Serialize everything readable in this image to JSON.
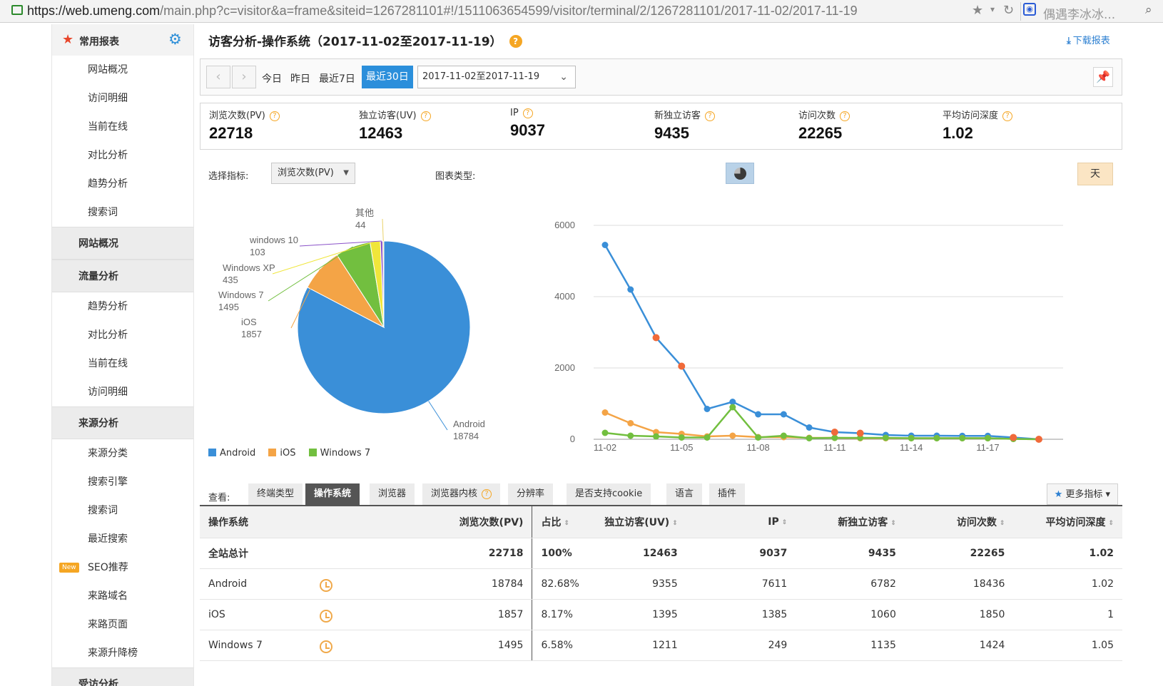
{
  "browser": {
    "url_prefix": "https://web.umeng.com",
    "url_rest": "/main.php?c=visitor&a=frame&siteid=1267281101#!/1511063654599/visitor/terminal/2/1267281101/2017-11-02/2017-11-19",
    "search_text": "偶遇李冰冰..."
  },
  "sidebar": {
    "favorites_title": "常用报表",
    "fav_items": [
      "网站概况",
      "访问明细",
      "当前在线",
      "对比分析",
      "趋势分析",
      "搜索词"
    ],
    "sec_site_overview": "网站概况",
    "sec_traffic": "流量分析",
    "traffic_items": [
      "趋势分析",
      "对比分析",
      "当前在线",
      "访问明细"
    ],
    "sec_source": "来源分析",
    "source_items": [
      "来源分类",
      "搜索引擎",
      "搜索词",
      "最近搜索",
      "SEO推荐",
      "来路域名",
      "来路页面",
      "来源升降榜"
    ],
    "new_badge": "New",
    "sec_visitor": "受访分析"
  },
  "header": {
    "title": "访客分析-操作系统（2017-11-02至2017-11-19）",
    "help": "?",
    "download": "下载报表"
  },
  "datebar": {
    "today": "今日",
    "yesterday": "昨日",
    "last7": "最近7日",
    "last30": "最近30日",
    "range": "2017-11-02至2017-11-19"
  },
  "stats": [
    {
      "label": "浏览次数(PV)",
      "value": "22718"
    },
    {
      "label": "独立访客(UV)",
      "value": "12463"
    },
    {
      "label": "IP",
      "value": "9037"
    },
    {
      "label": "新独立访客",
      "value": "9435"
    },
    {
      "label": "访问次数",
      "value": "22265"
    },
    {
      "label": "平均访问深度",
      "value": "1.02"
    }
  ],
  "controls": {
    "select_label": "选择指标:",
    "select_value": "浏览次数(PV)",
    "chart_type_label": "图表类型:",
    "granularity": "天"
  },
  "chart_data": [
    {
      "type": "pie",
      "labels": [
        "Android",
        "iOS",
        "Windows 7",
        "Windows XP",
        "windows 10",
        "其他"
      ],
      "values": [
        18784,
        1857,
        1495,
        435,
        103,
        44
      ],
      "colors": [
        "#3a8fd8",
        "#f4a446",
        "#72bf3f",
        "#f0e63a",
        "#8a52c8",
        "#e9d26a"
      ]
    },
    {
      "type": "line",
      "x": [
        "11-02",
        "11-03",
        "11-04",
        "11-05",
        "11-06",
        "11-07",
        "11-08",
        "11-09",
        "11-10",
        "11-11",
        "11-12",
        "11-13",
        "11-14",
        "11-15",
        "11-16",
        "11-17",
        "11-18",
        "11-19"
      ],
      "x_tick_labels": [
        "11-02",
        "11-05",
        "11-08",
        "11-11",
        "11-14",
        "11-17"
      ],
      "ylim": [
        0,
        6000
      ],
      "yticks": [
        0,
        2000,
        4000,
        6000
      ],
      "grid": true,
      "series": [
        {
          "name": "Android",
          "color": "#3a8fd8",
          "values": [
            5450,
            4200,
            2850,
            2050,
            850,
            1050,
            700,
            700,
            330,
            200,
            170,
            120,
            100,
            100,
            95,
            95,
            50,
            0
          ]
        },
        {
          "name": "iOS",
          "color": "#f4a446",
          "values": [
            750,
            450,
            200,
            150,
            80,
            100,
            60,
            60,
            40,
            40,
            30,
            30,
            30,
            30,
            30,
            30,
            10,
            0
          ]
        },
        {
          "name": "Windows 7",
          "color": "#72bf3f",
          "values": [
            180,
            100,
            80,
            50,
            50,
            900,
            50,
            100,
            30,
            40,
            40,
            40,
            30,
            30,
            30,
            30,
            10,
            0
          ]
        }
      ],
      "highlight_color": "#f06a3a",
      "highlight_points": [
        [
          2,
          2850
        ],
        [
          3,
          2050
        ],
        [
          9,
          200
        ],
        [
          10,
          170
        ],
        [
          16,
          50
        ],
        [
          17,
          0
        ]
      ]
    }
  ],
  "legend": [
    {
      "name": "Android",
      "color": "#3a8fd8"
    },
    {
      "name": "iOS",
      "color": "#f4a446"
    },
    {
      "name": "Windows 7",
      "color": "#72bf3f"
    }
  ],
  "view": {
    "label": "查看:",
    "tabs": [
      "终端类型",
      "操作系统",
      "浏览器",
      "浏览器内核",
      "分辨率",
      "是否支持cookie",
      "语言",
      "插件"
    ],
    "more": "更多指标"
  },
  "table": {
    "headers": [
      "操作系统",
      "浏览次数(PV)",
      "占比",
      "独立访客(UV)",
      "IP",
      "新独立访客",
      "访问次数",
      "平均访问深度"
    ],
    "rows": [
      [
        "全站总计",
        "22718",
        "100%",
        "12463",
        "9037",
        "9435",
        "22265",
        "1.02"
      ],
      [
        "Android",
        "18784",
        "82.68%",
        "9355",
        "7611",
        "6782",
        "18436",
        "1.02"
      ],
      [
        "iOS",
        "1857",
        "8.17%",
        "1395",
        "1385",
        "1060",
        "1850",
        "1"
      ],
      [
        "Windows 7",
        "1495",
        "6.58%",
        "1211",
        "249",
        "1135",
        "1424",
        "1.05"
      ]
    ]
  }
}
